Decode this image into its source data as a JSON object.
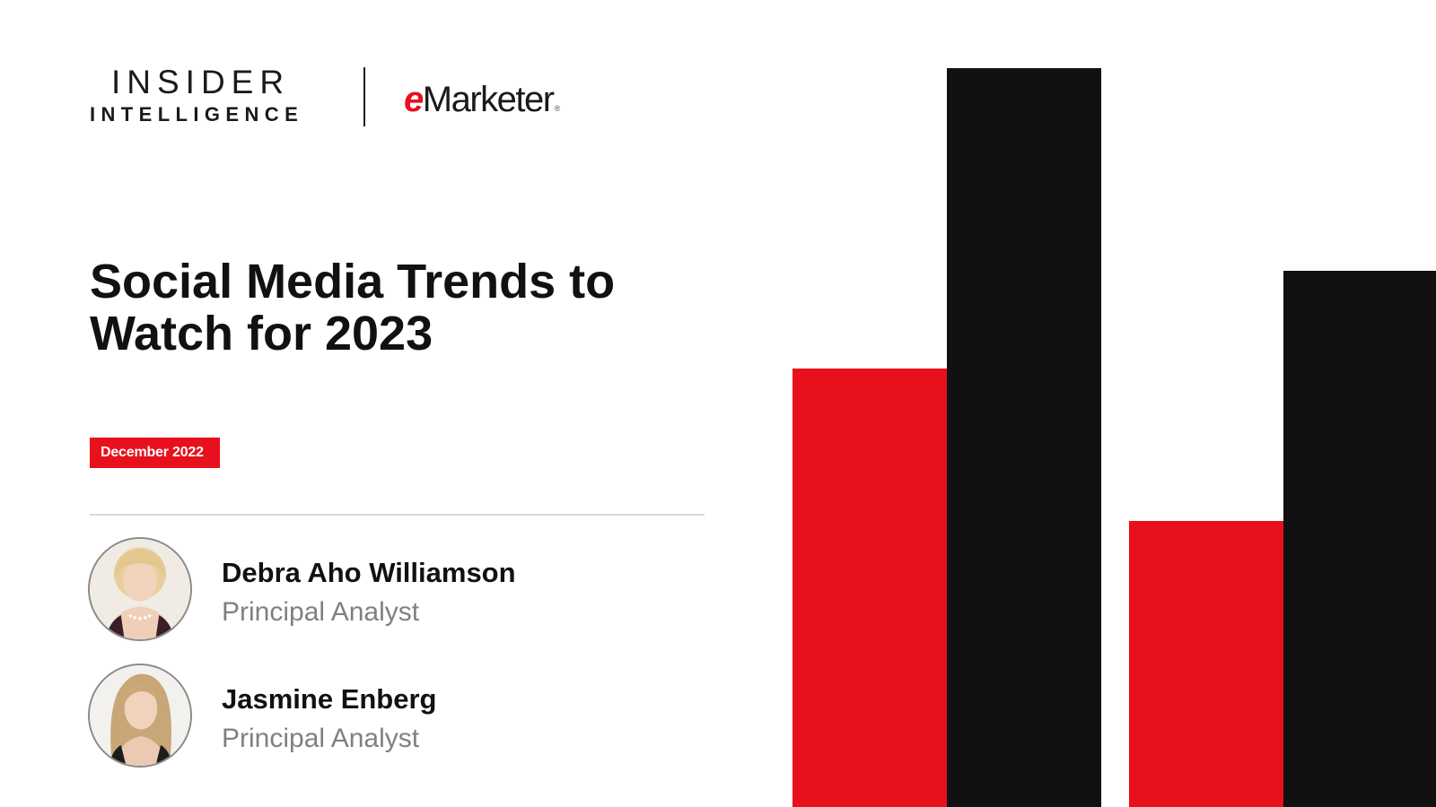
{
  "brand": {
    "insider_line1": "INSIDER",
    "insider_line2": "INTELLIGENCE",
    "emarketer_e": "e",
    "emarketer_rest": "Marketer",
    "emarketer_reg": "®"
  },
  "report": {
    "title_line1": "Social Media Trends to",
    "title_line2": "Watch for 2023",
    "date": "December 2022"
  },
  "authors": [
    {
      "name": "Debra Aho Williamson",
      "role": "Principal Analyst"
    },
    {
      "name": "Jasmine Enberg",
      "role": "Principal Analyst"
    }
  ],
  "colors": {
    "accent_red": "#e8101d",
    "bar_black": "#111111",
    "text_dark": "#111111",
    "text_muted": "#808080",
    "rule": "#d9d9d9"
  },
  "decoration": {
    "bar_colors": [
      "red",
      "black",
      "red",
      "black"
    ]
  }
}
